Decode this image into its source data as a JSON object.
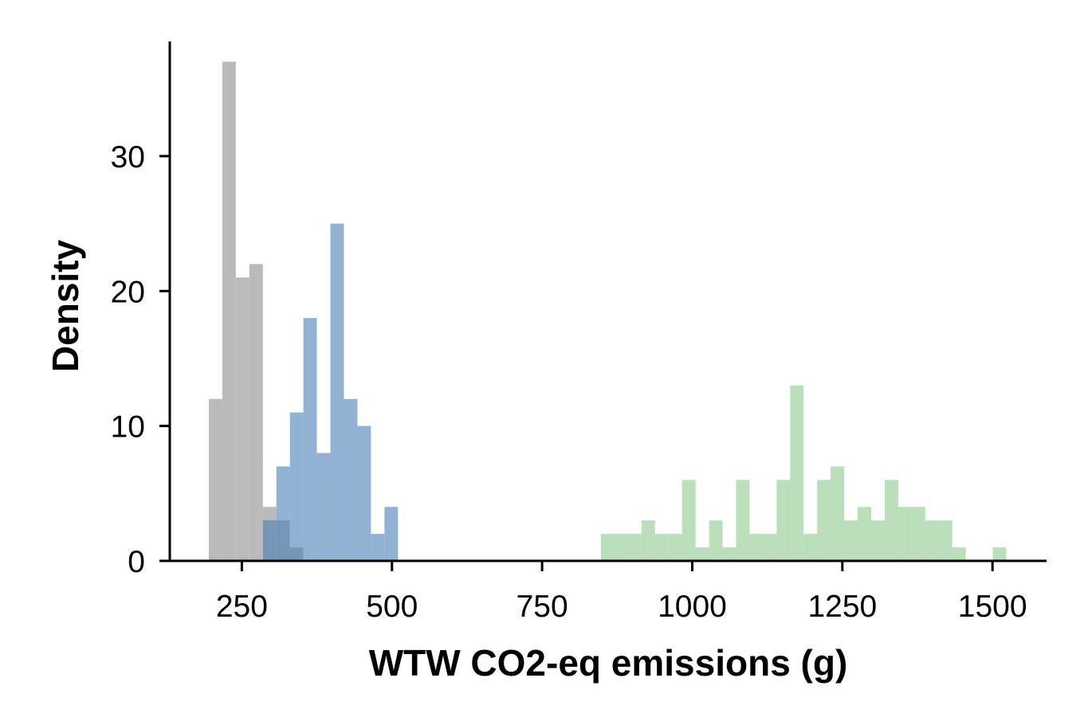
{
  "chart_data": {
    "type": "histogram",
    "title": "",
    "xlabel": "WTW CO2-eq emissions (g)",
    "ylabel": "Density",
    "xlim": [
      130,
      1590
    ],
    "ylim": [
      0,
      38.5
    ],
    "x_ticks": [
      250,
      500,
      750,
      1000,
      1250,
      1500
    ],
    "y_ticks": [
      0,
      10,
      20,
      30
    ],
    "grid": false,
    "legend": "none",
    "bin_width": 22.5,
    "series": [
      {
        "color": "#a9a9a9",
        "opacity": 0.8,
        "bins": [
          {
            "x0": 195,
            "x1": 217.5,
            "value": 12
          },
          {
            "x0": 217.5,
            "x1": 240,
            "value": 37
          },
          {
            "x0": 240,
            "x1": 262.5,
            "value": 21
          },
          {
            "x0": 262.5,
            "x1": 285,
            "value": 22
          },
          {
            "x0": 285,
            "x1": 307.5,
            "value": 4
          },
          {
            "x0": 307.5,
            "x1": 330,
            "value": 3
          },
          {
            "x0": 330,
            "x1": 352.5,
            "value": 1
          }
        ]
      },
      {
        "color": "#4a7fb5",
        "opacity": 0.6,
        "bins": [
          {
            "x0": 285,
            "x1": 307.5,
            "value": 3
          },
          {
            "x0": 307.5,
            "x1": 330,
            "value": 7
          },
          {
            "x0": 330,
            "x1": 352.5,
            "value": 11
          },
          {
            "x0": 352.5,
            "x1": 375,
            "value": 18
          },
          {
            "x0": 375,
            "x1": 397.5,
            "value": 8
          },
          {
            "x0": 397.5,
            "x1": 420,
            "value": 25
          },
          {
            "x0": 420,
            "x1": 442.5,
            "value": 12
          },
          {
            "x0": 442.5,
            "x1": 465,
            "value": 10
          },
          {
            "x0": 465,
            "x1": 487.5,
            "value": 2
          },
          {
            "x0": 487.5,
            "x1": 510,
            "value": 4
          }
        ]
      },
      {
        "color": "#8ec98e",
        "opacity": 0.6,
        "bins": [
          {
            "x0": 848,
            "x1": 870.5,
            "value": 2
          },
          {
            "x0": 870.5,
            "x1": 893,
            "value": 2
          },
          {
            "x0": 893,
            "x1": 915.5,
            "value": 2
          },
          {
            "x0": 915.5,
            "x1": 938,
            "value": 3
          },
          {
            "x0": 938,
            "x1": 960.5,
            "value": 2
          },
          {
            "x0": 960.5,
            "x1": 983,
            "value": 2
          },
          {
            "x0": 983,
            "x1": 1005.5,
            "value": 6
          },
          {
            "x0": 1005.5,
            "x1": 1028,
            "value": 1
          },
          {
            "x0": 1028,
            "x1": 1050.5,
            "value": 3
          },
          {
            "x0": 1050.5,
            "x1": 1073,
            "value": 1
          },
          {
            "x0": 1073,
            "x1": 1095.5,
            "value": 6
          },
          {
            "x0": 1095.5,
            "x1": 1118,
            "value": 2
          },
          {
            "x0": 1118,
            "x1": 1140.5,
            "value": 2
          },
          {
            "x0": 1140.5,
            "x1": 1163,
            "value": 6
          },
          {
            "x0": 1163,
            "x1": 1185.5,
            "value": 13
          },
          {
            "x0": 1185.5,
            "x1": 1208,
            "value": 2
          },
          {
            "x0": 1208,
            "x1": 1230.5,
            "value": 6
          },
          {
            "x0": 1230.5,
            "x1": 1253,
            "value": 7
          },
          {
            "x0": 1253,
            "x1": 1275.5,
            "value": 3
          },
          {
            "x0": 1275.5,
            "x1": 1298,
            "value": 4
          },
          {
            "x0": 1298,
            "x1": 1320.5,
            "value": 3
          },
          {
            "x0": 1320.5,
            "x1": 1343,
            "value": 6
          },
          {
            "x0": 1343,
            "x1": 1365.5,
            "value": 4
          },
          {
            "x0": 1365.5,
            "x1": 1388,
            "value": 4
          },
          {
            "x0": 1388,
            "x1": 1410.5,
            "value": 3
          },
          {
            "x0": 1410.5,
            "x1": 1433,
            "value": 3
          },
          {
            "x0": 1433,
            "x1": 1455.5,
            "value": 1
          },
          {
            "x0": 1500.5,
            "x1": 1523,
            "value": 1
          }
        ]
      }
    ]
  }
}
